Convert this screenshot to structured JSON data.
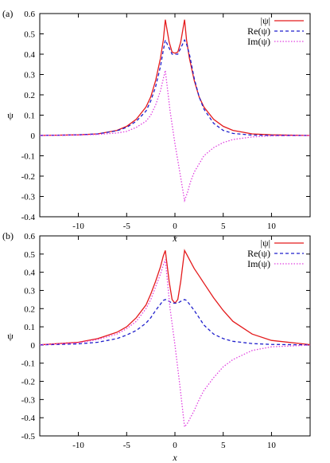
{
  "chart_data": [
    {
      "type": "line",
      "panel_label": "(a)",
      "xlabel": "x",
      "ylabel": "ψ",
      "xlim": [
        -14,
        14
      ],
      "ylim": [
        -0.4,
        0.6
      ],
      "xticks": [
        -10,
        -5,
        0,
        5,
        10
      ],
      "xtick_labels": [
        "-10",
        "-5",
        "0",
        "5",
        "10"
      ],
      "yticks": [
        -0.4,
        -0.3,
        -0.2,
        -0.1,
        0,
        0.1,
        0.2,
        0.3,
        0.4,
        0.5,
        0.6
      ],
      "ytick_labels": [
        "-0.4",
        "-0.3",
        "-0.2",
        "-0.1",
        "0",
        "0.1",
        "0.2",
        "0.3",
        "0.4",
        "0.5",
        "0.6"
      ],
      "legend_position": "top-right",
      "series": [
        {
          "name": "|ψ|",
          "color": "#e41a1c",
          "dash": "solid",
          "x": [
            -14,
            -10,
            -8,
            -6,
            -5,
            -4,
            -3,
            -2.5,
            -2,
            -1.5,
            -1.2,
            -1,
            -0.6,
            -0.3,
            0,
            0.3,
            0.6,
            1,
            1.2,
            1.5,
            2,
            2.5,
            3,
            4,
            5,
            6,
            8,
            10,
            14
          ],
          "y": [
            0.0001,
            0.003,
            0.008,
            0.025,
            0.045,
            0.08,
            0.14,
            0.19,
            0.27,
            0.38,
            0.47,
            0.57,
            0.46,
            0.41,
            0.405,
            0.41,
            0.46,
            0.57,
            0.47,
            0.38,
            0.27,
            0.19,
            0.14,
            0.08,
            0.045,
            0.025,
            0.008,
            0.003,
            0.0001
          ]
        },
        {
          "name": "Re(ψ)",
          "color": "#1f1fcc",
          "dash": "4,3",
          "x": [
            -14,
            -10,
            -8,
            -6,
            -5,
            -4,
            -3,
            -2.5,
            -2,
            -1.5,
            -1.2,
            -1,
            -0.6,
            -0.3,
            0,
            0.3,
            0.6,
            1,
            1.2,
            1.5,
            2,
            2.5,
            3,
            4,
            5,
            6,
            8,
            10,
            14
          ],
          "y": [
            0.0001,
            0.003,
            0.008,
            0.023,
            0.04,
            0.07,
            0.12,
            0.17,
            0.24,
            0.34,
            0.42,
            0.47,
            0.43,
            0.4,
            0.4,
            0.4,
            0.43,
            0.47,
            0.45,
            0.4,
            0.28,
            0.19,
            0.13,
            0.06,
            0.025,
            0.01,
            0.002,
            0.0005,
            0.0
          ]
        },
        {
          "name": "Im(ψ)",
          "color": "#e040e0",
          "dash": "1.5,2",
          "x": [
            -14,
            -10,
            -8,
            -6,
            -5,
            -4,
            -3,
            -2.5,
            -2,
            -1.5,
            -1.2,
            -1,
            -0.5,
            0,
            0.5,
            1,
            1.3,
            1.6,
            2,
            2.5,
            3,
            4,
            5,
            6,
            8,
            10,
            14
          ],
          "y": [
            0.0001,
            0.002,
            0.005,
            0.012,
            0.02,
            0.04,
            0.07,
            0.1,
            0.15,
            0.22,
            0.28,
            0.32,
            0.12,
            -0.04,
            -0.18,
            -0.32,
            -0.28,
            -0.23,
            -0.18,
            -0.14,
            -0.1,
            -0.06,
            -0.035,
            -0.02,
            -0.007,
            -0.002,
            -0.0001
          ]
        }
      ]
    },
    {
      "type": "line",
      "panel_label": "(b)",
      "xlabel": "x",
      "ylabel": "ψ",
      "xlim": [
        -14,
        14
      ],
      "ylim": [
        -0.5,
        0.6
      ],
      "xticks": [
        -10,
        -5,
        0,
        5,
        10
      ],
      "xtick_labels": [
        "-10",
        "-5",
        "0",
        "5",
        "10"
      ],
      "yticks": [
        -0.5,
        -0.4,
        -0.3,
        -0.2,
        -0.1,
        0,
        0.1,
        0.2,
        0.3,
        0.4,
        0.5,
        0.6
      ],
      "ytick_labels": [
        "-0.5",
        "-0.4",
        "-0.3",
        "-0.2",
        "-0.1",
        "0",
        "0.1",
        "0.2",
        "0.3",
        "0.4",
        "0.5",
        "0.6"
      ],
      "legend_position": "top-right",
      "series": [
        {
          "name": "|ψ|",
          "color": "#e41a1c",
          "dash": "solid",
          "x": [
            -14,
            -10,
            -8,
            -6,
            -5,
            -4,
            -3,
            -2.5,
            -2,
            -1.5,
            -1.2,
            -1,
            -0.6,
            -0.3,
            0,
            0.3,
            0.6,
            1,
            1.2,
            1.5,
            2,
            2.5,
            3,
            4,
            5,
            6,
            8,
            10,
            14
          ],
          "y": [
            0.001,
            0.015,
            0.035,
            0.07,
            0.1,
            0.15,
            0.22,
            0.28,
            0.35,
            0.43,
            0.49,
            0.52,
            0.35,
            0.25,
            0.23,
            0.25,
            0.35,
            0.52,
            0.5,
            0.47,
            0.42,
            0.38,
            0.34,
            0.26,
            0.19,
            0.13,
            0.06,
            0.025,
            0.002
          ]
        },
        {
          "name": "Re(ψ)",
          "color": "#1f1fcc",
          "dash": "4,3",
          "x": [
            -14,
            -10,
            -8,
            -6,
            -5,
            -4,
            -3,
            -2.5,
            -2,
            -1.5,
            -1.2,
            -1,
            -0.6,
            -0.3,
            0,
            0.3,
            0.6,
            1,
            1.2,
            1.5,
            2,
            2.5,
            3,
            4,
            5,
            6,
            8,
            10,
            14
          ],
          "y": [
            0.0005,
            0.006,
            0.015,
            0.035,
            0.055,
            0.08,
            0.12,
            0.15,
            0.19,
            0.225,
            0.245,
            0.25,
            0.24,
            0.23,
            0.23,
            0.23,
            0.24,
            0.25,
            0.245,
            0.225,
            0.19,
            0.15,
            0.11,
            0.06,
            0.035,
            0.02,
            0.008,
            0.003,
            0.0003
          ]
        },
        {
          "name": "Im(ψ)",
          "color": "#e040e0",
          "dash": "1.5,2",
          "x": [
            -14,
            -10,
            -8,
            -6,
            -5,
            -4,
            -3,
            -2.5,
            -2,
            -1.5,
            -1.2,
            -1,
            -0.5,
            0,
            0.5,
            1,
            1.3,
            1.6,
            2,
            2.5,
            3,
            4,
            5,
            6,
            8,
            10,
            14
          ],
          "y": [
            0.001,
            0.012,
            0.03,
            0.06,
            0.09,
            0.13,
            0.2,
            0.25,
            0.32,
            0.39,
            0.44,
            0.47,
            0.2,
            0.0,
            -0.22,
            -0.45,
            -0.43,
            -0.4,
            -0.36,
            -0.3,
            -0.25,
            -0.18,
            -0.12,
            -0.08,
            -0.03,
            -0.01,
            -0.0005
          ]
        }
      ]
    }
  ]
}
